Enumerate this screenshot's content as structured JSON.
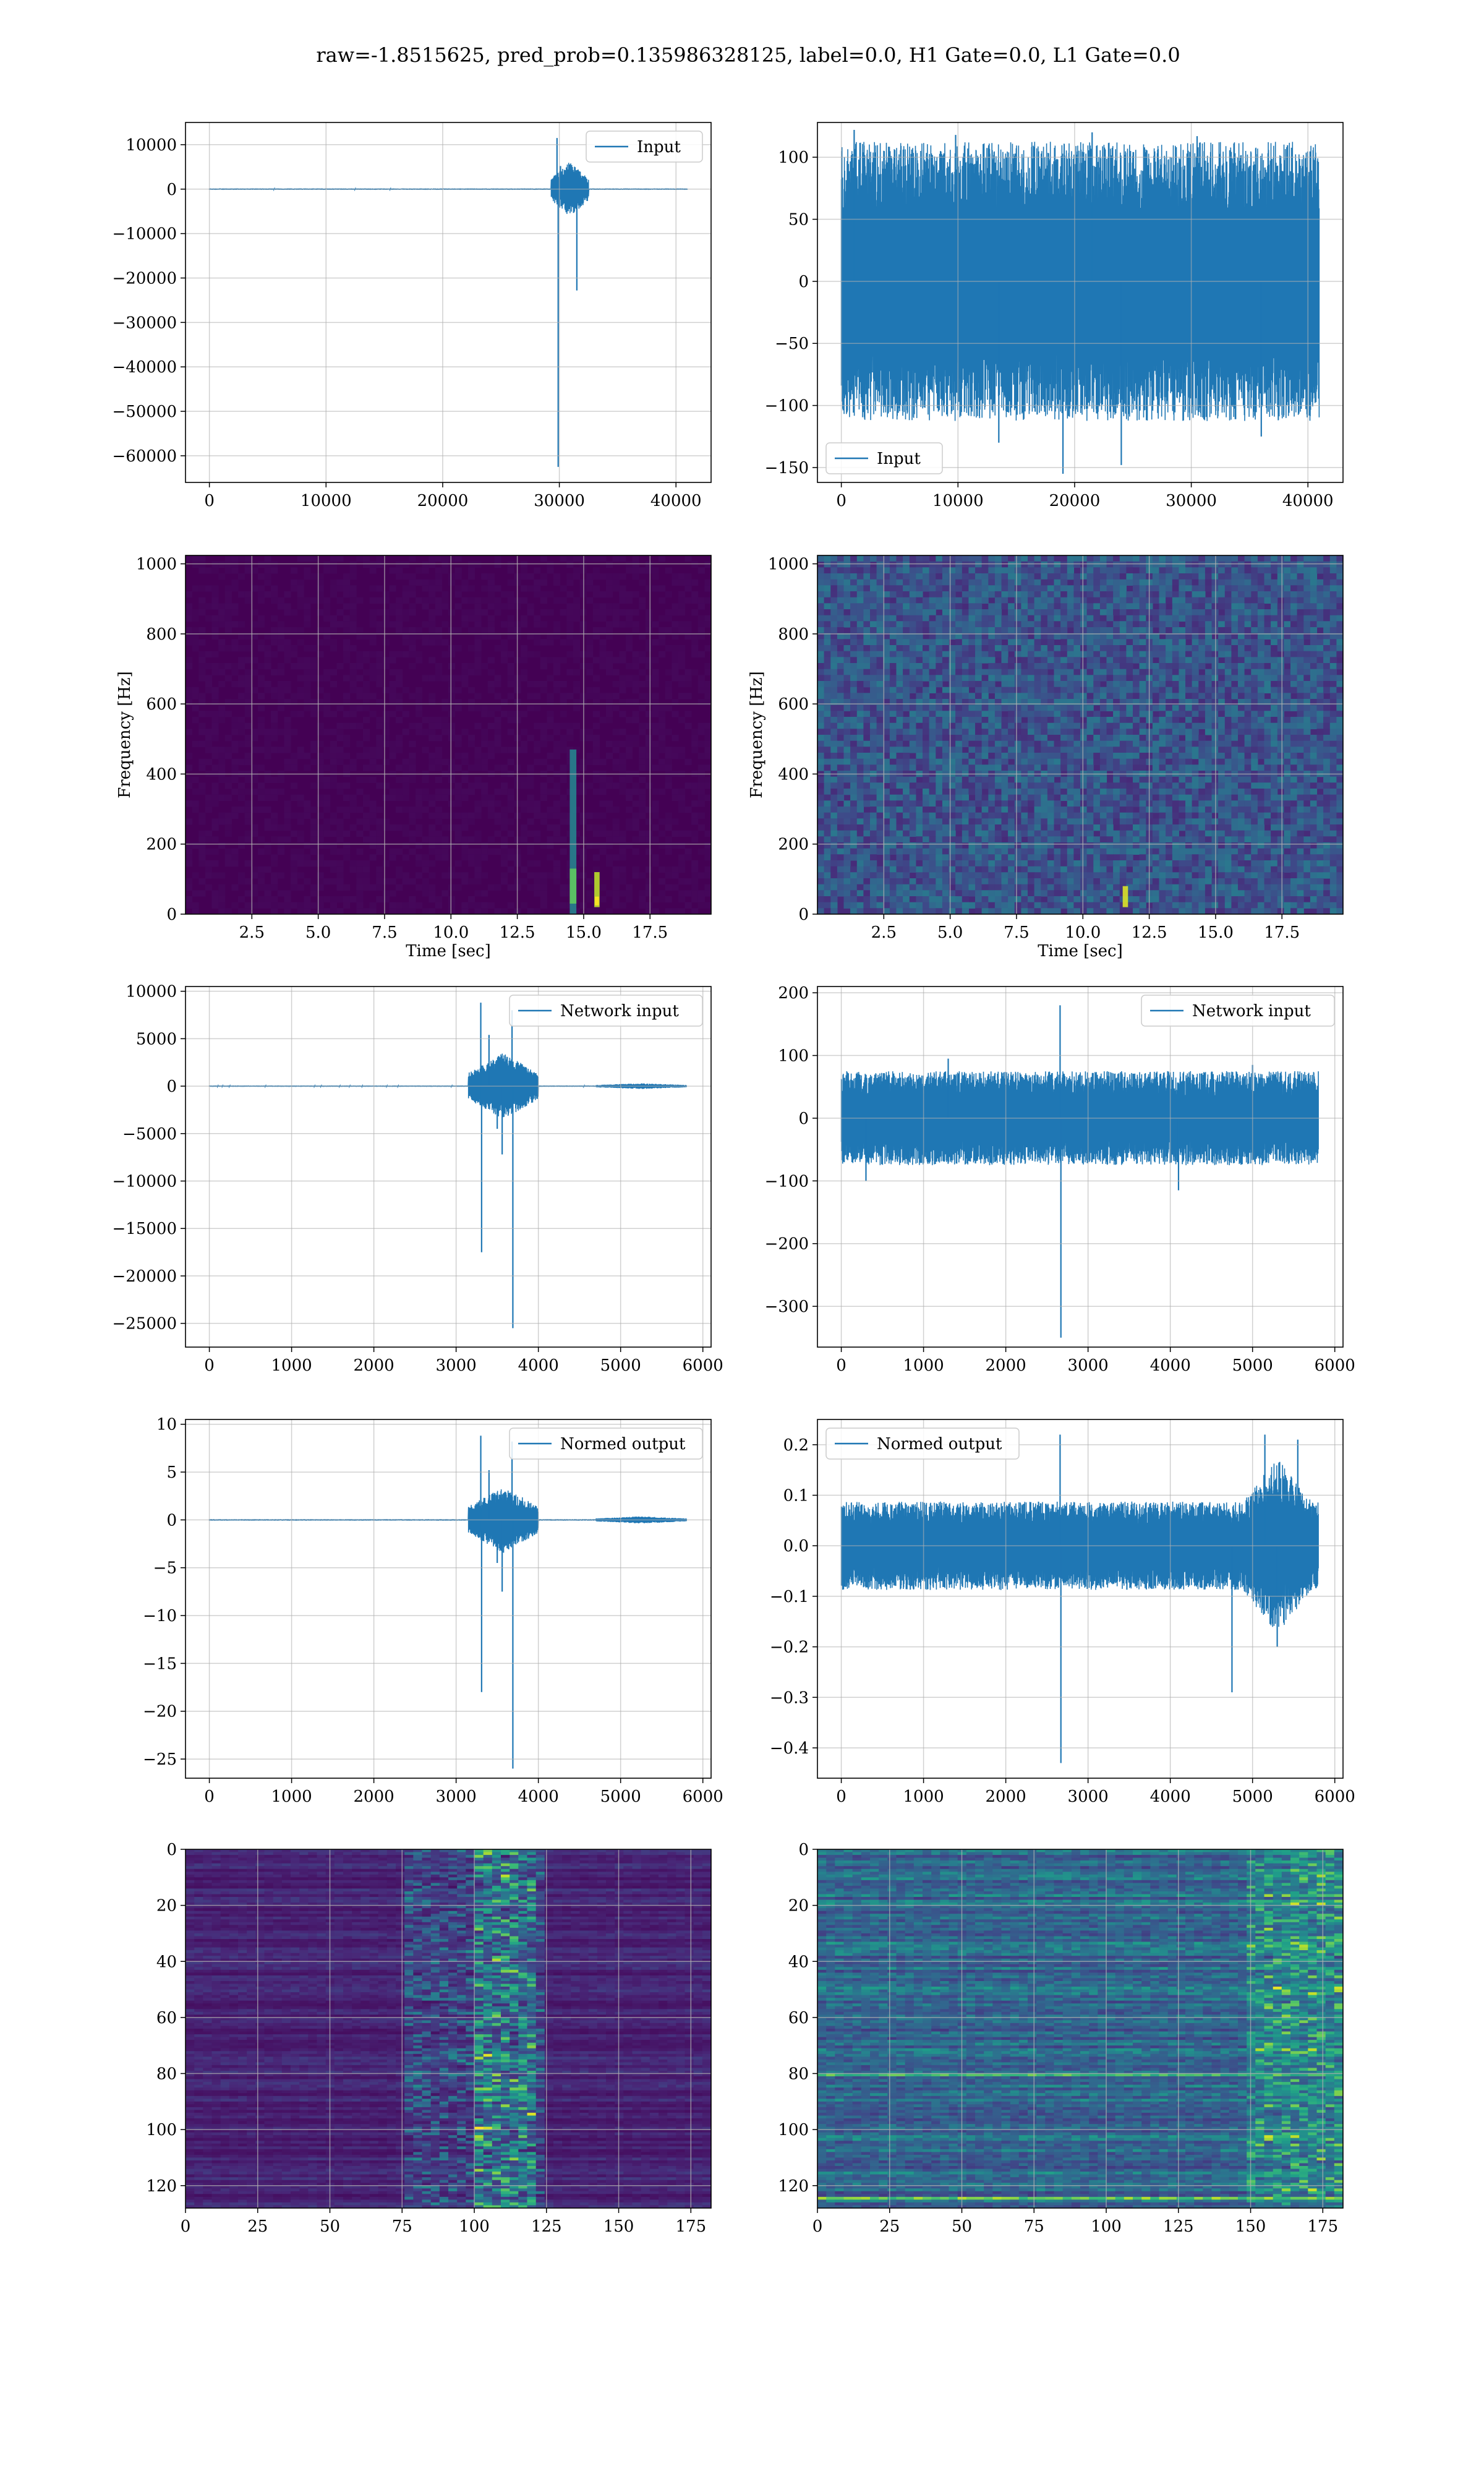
{
  "title": "raw=-1.8515625, pred_prob=0.135986328125, label=0.0, H1 Gate=0.0, L1 Gate=0.0",
  "colors": {
    "line": "#1f77b4",
    "grid": "#b0b0b0",
    "viridis_dark": "#440154",
    "viridis_mid": "#21918c",
    "viridis_bright": "#fde725"
  },
  "chart_data": [
    {
      "id": "p00",
      "type": "line",
      "legend": "Input",
      "legend_loc": "upper right",
      "xlim": [
        -2048,
        43008
      ],
      "ylim": [
        -66000,
        15000
      ],
      "xticks": [
        0,
        10000,
        20000,
        30000,
        40000
      ],
      "yticks": [
        10000,
        0,
        -10000,
        -20000,
        -30000,
        -40000,
        -50000,
        -60000
      ],
      "xticklabels": [
        "0",
        "10000",
        "20000",
        "30000",
        "40000"
      ],
      "yticklabels": [
        "10000",
        "0",
        "−10000",
        "−20000",
        "−30000",
        "−40000",
        "−50000",
        "−60000"
      ],
      "signal": {
        "n": 40960,
        "noise": 60,
        "events": [
          {
            "x": 29800,
            "y": 11500
          },
          {
            "x": 29900,
            "y": -62500
          },
          {
            "x": 31500,
            "y": -22800
          },
          {
            "x": 30100,
            "y": 5200
          },
          {
            "x": 30500,
            "y": -3500
          },
          {
            "x": 29600,
            "y": 3000
          }
        ],
        "bursts": [
          {
            "from": 29300,
            "to": 32500,
            "amp": 2500
          }
        ]
      }
    },
    {
      "id": "p01",
      "type": "line",
      "legend": "Input",
      "legend_loc": "lower left",
      "xlim": [
        -2048,
        43008
      ],
      "ylim": [
        -162,
        128
      ],
      "xticks": [
        0,
        10000,
        20000,
        30000,
        40000
      ],
      "yticks": [
        100,
        50,
        0,
        -50,
        -100,
        -150
      ],
      "xticklabels": [
        "0",
        "10000",
        "20000",
        "30000",
        "40000"
      ],
      "yticklabels": [
        "100",
        "50",
        "0",
        "−50",
        "−100",
        "−150"
      ],
      "signal": {
        "n": 40960,
        "noise": 45,
        "events": [
          {
            "x": 19000,
            "y": -155
          },
          {
            "x": 24000,
            "y": -148
          },
          {
            "x": 1100,
            "y": 122
          },
          {
            "x": 9800,
            "y": 118
          },
          {
            "x": 21500,
            "y": 120
          },
          {
            "x": 30500,
            "y": 117
          },
          {
            "x": 13500,
            "y": -130
          },
          {
            "x": 36000,
            "y": -125
          }
        ],
        "bursts": []
      }
    },
    {
      "id": "p10",
      "type": "heatmap",
      "cmap": "viridis",
      "xlabel": "Time [sec]",
      "ylabel": "Frequency [Hz]",
      "xlim": [
        0,
        19.8
      ],
      "ylim": [
        0,
        1024
      ],
      "xticks": [
        2.5,
        5.0,
        7.5,
        10.0,
        12.5,
        15.0,
        17.5
      ],
      "yticks": [
        0,
        200,
        400,
        600,
        800,
        1000
      ],
      "xticklabels": [
        "2.5",
        "5.0",
        "7.5",
        "10.0",
        "12.5",
        "15.0",
        "17.5"
      ],
      "yticklabels": [
        "0",
        "200",
        "400",
        "600",
        "800",
        "1000"
      ],
      "background": 0.0,
      "noise": 0.02,
      "features": [
        {
          "t": 14.6,
          "f0": 0,
          "f1": 470,
          "v": 0.45,
          "w": 0.25
        },
        {
          "t": 14.6,
          "f0": 30,
          "f1": 130,
          "v": 0.75,
          "w": 0.25
        },
        {
          "t": 15.5,
          "f0": 20,
          "f1": 120,
          "v": 0.9,
          "w": 0.2
        },
        {
          "t": 15.5,
          "f0": 25,
          "f1": 50,
          "v": 1.0,
          "w": 0.15
        }
      ]
    },
    {
      "id": "p11",
      "type": "heatmap",
      "cmap": "viridis",
      "xlabel": "Time [sec]",
      "ylabel": "Frequency [Hz]",
      "xlim": [
        0,
        19.8
      ],
      "ylim": [
        0,
        1024
      ],
      "xticks": [
        2.5,
        5.0,
        7.5,
        10.0,
        12.5,
        15.0,
        17.5
      ],
      "yticks": [
        0,
        200,
        400,
        600,
        800,
        1000
      ],
      "xticklabels": [
        "2.5",
        "5.0",
        "7.5",
        "10.0",
        "12.5",
        "15.0",
        "17.5"
      ],
      "yticklabels": [
        "0",
        "200",
        "400",
        "600",
        "800",
        "1000"
      ],
      "background": 0.12,
      "noise": 0.28,
      "features": [
        {
          "t": 11.6,
          "f0": 20,
          "f1": 80,
          "v": 0.95,
          "w": 0.2
        }
      ]
    },
    {
      "id": "p20",
      "type": "line",
      "legend": "Network input",
      "legend_loc": "upper right",
      "xlim": [
        -290,
        6100
      ],
      "ylim": [
        -27500,
        10500
      ],
      "xticks": [
        0,
        1000,
        2000,
        3000,
        4000,
        5000,
        6000
      ],
      "yticks": [
        10000,
        5000,
        0,
        -5000,
        -10000,
        -15000,
        -20000,
        -25000
      ],
      "xticklabels": [
        "0",
        "1000",
        "2000",
        "3000",
        "4000",
        "5000",
        "6000"
      ],
      "yticklabels": [
        "10000",
        "5000",
        "0",
        "−5000",
        "−10000",
        "−15000",
        "−20000",
        "−25000"
      ],
      "signal": {
        "n": 5800,
        "noise": 25,
        "events": [
          {
            "x": 3300,
            "y": 8800
          },
          {
            "x": 3310,
            "y": -17500
          },
          {
            "x": 3680,
            "y": 8000
          },
          {
            "x": 3690,
            "y": -25500
          },
          {
            "x": 3560,
            "y": -7200
          },
          {
            "x": 3400,
            "y": 5400
          },
          {
            "x": 3500,
            "y": -4500
          }
        ],
        "bursts": [
          {
            "from": 3150,
            "to": 4000,
            "amp": 1400
          },
          {
            "from": 4700,
            "to": 5800,
            "amp": 120
          }
        ]
      }
    },
    {
      "id": "p21",
      "type": "line",
      "legend": "Network input",
      "legend_loc": "upper right",
      "xlim": [
        -290,
        6100
      ],
      "ylim": [
        -365,
        210
      ],
      "xticks": [
        0,
        1000,
        2000,
        3000,
        4000,
        5000,
        6000
      ],
      "yticks": [
        200,
        100,
        0,
        -100,
        -200,
        -300
      ],
      "xticklabels": [
        "0",
        "1000",
        "2000",
        "3000",
        "4000",
        "5000",
        "6000"
      ],
      "yticklabels": [
        "200",
        "100",
        "0",
        "−100",
        "−200",
        "−300"
      ],
      "signal": {
        "n": 5800,
        "noise": 30,
        "events": [
          {
            "x": 2660,
            "y": 180
          },
          {
            "x": 2670,
            "y": -350
          },
          {
            "x": 300,
            "y": -100
          },
          {
            "x": 1300,
            "y": 95
          },
          {
            "x": 4100,
            "y": -115
          },
          {
            "x": 5000,
            "y": 85
          }
        ],
        "bursts": []
      }
    },
    {
      "id": "p30",
      "type": "line",
      "legend": "Normed output",
      "legend_loc": "upper right",
      "xlim": [
        -290,
        6100
      ],
      "ylim": [
        -27,
        10.5
      ],
      "xticks": [
        0,
        1000,
        2000,
        3000,
        4000,
        5000,
        6000
      ],
      "yticks": [
        10,
        5,
        0,
        -5,
        -10,
        -15,
        -20,
        -25
      ],
      "xticklabels": [
        "0",
        "1000",
        "2000",
        "3000",
        "4000",
        "5000",
        "6000"
      ],
      "yticklabels": [
        "10",
        "5",
        "0",
        "−5",
        "−10",
        "−15",
        "−20",
        "−25"
      ],
      "signal": {
        "n": 5800,
        "noise": 0.03,
        "events": [
          {
            "x": 3300,
            "y": 8.8
          },
          {
            "x": 3310,
            "y": -18
          },
          {
            "x": 3680,
            "y": 8.2
          },
          {
            "x": 3690,
            "y": -26
          },
          {
            "x": 3560,
            "y": -7.5
          },
          {
            "x": 3400,
            "y": 5.2
          },
          {
            "x": 3500,
            "y": -4.5
          }
        ],
        "bursts": [
          {
            "from": 3150,
            "to": 4000,
            "amp": 1.4
          },
          {
            "from": 4700,
            "to": 5800,
            "amp": 0.15
          }
        ]
      }
    },
    {
      "id": "p31",
      "type": "line",
      "legend": "Normed output",
      "legend_loc": "upper left",
      "xlim": [
        -290,
        6100
      ],
      "ylim": [
        -0.46,
        0.25
      ],
      "xticks": [
        0,
        1000,
        2000,
        3000,
        4000,
        5000,
        6000
      ],
      "yticks": [
        0.2,
        0.1,
        0.0,
        -0.1,
        -0.2,
        -0.3,
        -0.4
      ],
      "xticklabels": [
        "0",
        "1000",
        "2000",
        "3000",
        "4000",
        "5000",
        "6000"
      ],
      "yticklabels": [
        "0.2",
        "0.1",
        "0.0",
        "−0.1",
        "−0.2",
        "−0.3",
        "−0.4"
      ],
      "signal": {
        "n": 5800,
        "noise": 0.035,
        "events": [
          {
            "x": 2660,
            "y": 0.22
          },
          {
            "x": 2670,
            "y": -0.43
          },
          {
            "x": 4750,
            "y": -0.29
          },
          {
            "x": 5150,
            "y": 0.22
          },
          {
            "x": 5550,
            "y": 0.21
          },
          {
            "x": 5300,
            "y": -0.2
          }
        ],
        "bursts": [
          {
            "from": 4800,
            "to": 5800,
            "amp": 0.07
          }
        ]
      }
    },
    {
      "id": "p40",
      "type": "heatmap",
      "cmap": "viridis",
      "orientation": "rows",
      "xlim": [
        0,
        182
      ],
      "ylim": [
        128,
        0
      ],
      "xticks": [
        0,
        25,
        50,
        75,
        100,
        125,
        150,
        175
      ],
      "yticks": [
        0,
        20,
        40,
        60,
        80,
        100,
        120
      ],
      "xticklabels": [
        "0",
        "25",
        "50",
        "75",
        "100",
        "125",
        "150",
        "175"
      ],
      "yticklabels": [
        "0",
        "20",
        "40",
        "60",
        "80",
        "100",
        "120"
      ],
      "background": 0.05,
      "noise": 0.1,
      "features": [
        {
          "x0": 75,
          "x1": 125,
          "v": 0.35
        },
        {
          "x0": 100,
          "x1": 120,
          "v": 0.55
        }
      ]
    },
    {
      "id": "p41",
      "type": "heatmap",
      "cmap": "viridis",
      "orientation": "rows",
      "xlim": [
        0,
        182
      ],
      "ylim": [
        128,
        0
      ],
      "xticks": [
        0,
        25,
        50,
        75,
        100,
        125,
        150,
        175
      ],
      "yticks": [
        0,
        20,
        40,
        60,
        80,
        100,
        120
      ],
      "xticklabels": [
        "0",
        "25",
        "50",
        "75",
        "100",
        "125",
        "150",
        "175"
      ],
      "yticklabels": [
        "0",
        "20",
        "40",
        "60",
        "80",
        "100",
        "120"
      ],
      "background": 0.22,
      "noise": 0.22,
      "features": [
        {
          "x0": 150,
          "x1": 182,
          "v": 0.45
        },
        {
          "row": 80,
          "v": 0.8
        },
        {
          "row": 124,
          "v": 0.9
        }
      ]
    }
  ]
}
